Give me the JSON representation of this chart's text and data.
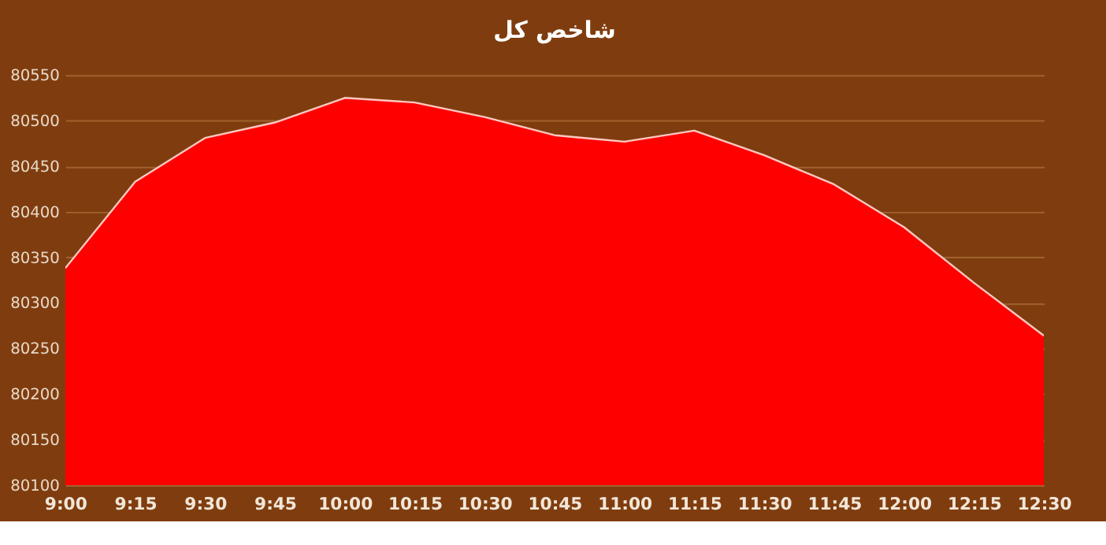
{
  "chart_data": {
    "type": "area",
    "title": "شاخص کل",
    "categories": [
      "9:00",
      "9:15",
      "9:30",
      "9:45",
      "10:00",
      "10:15",
      "10:30",
      "10:45",
      "11:00",
      "11:15",
      "11:30",
      "11:45",
      "12:00",
      "12:15",
      "12:30"
    ],
    "series": [
      {
        "color": "#ff0000",
        "values": [
          80338,
          80433,
          80481,
          80498,
          80525,
          80520,
          80504,
          80484,
          80477,
          80489,
          80462,
          80430,
          80383,
          80322,
          80264
        ]
      }
    ],
    "ylim": [
      80100,
      80550
    ],
    "yticks": [
      80100,
      80150,
      80200,
      80250,
      80300,
      80350,
      80400,
      80450,
      80500,
      80550
    ],
    "grid": "y"
  }
}
